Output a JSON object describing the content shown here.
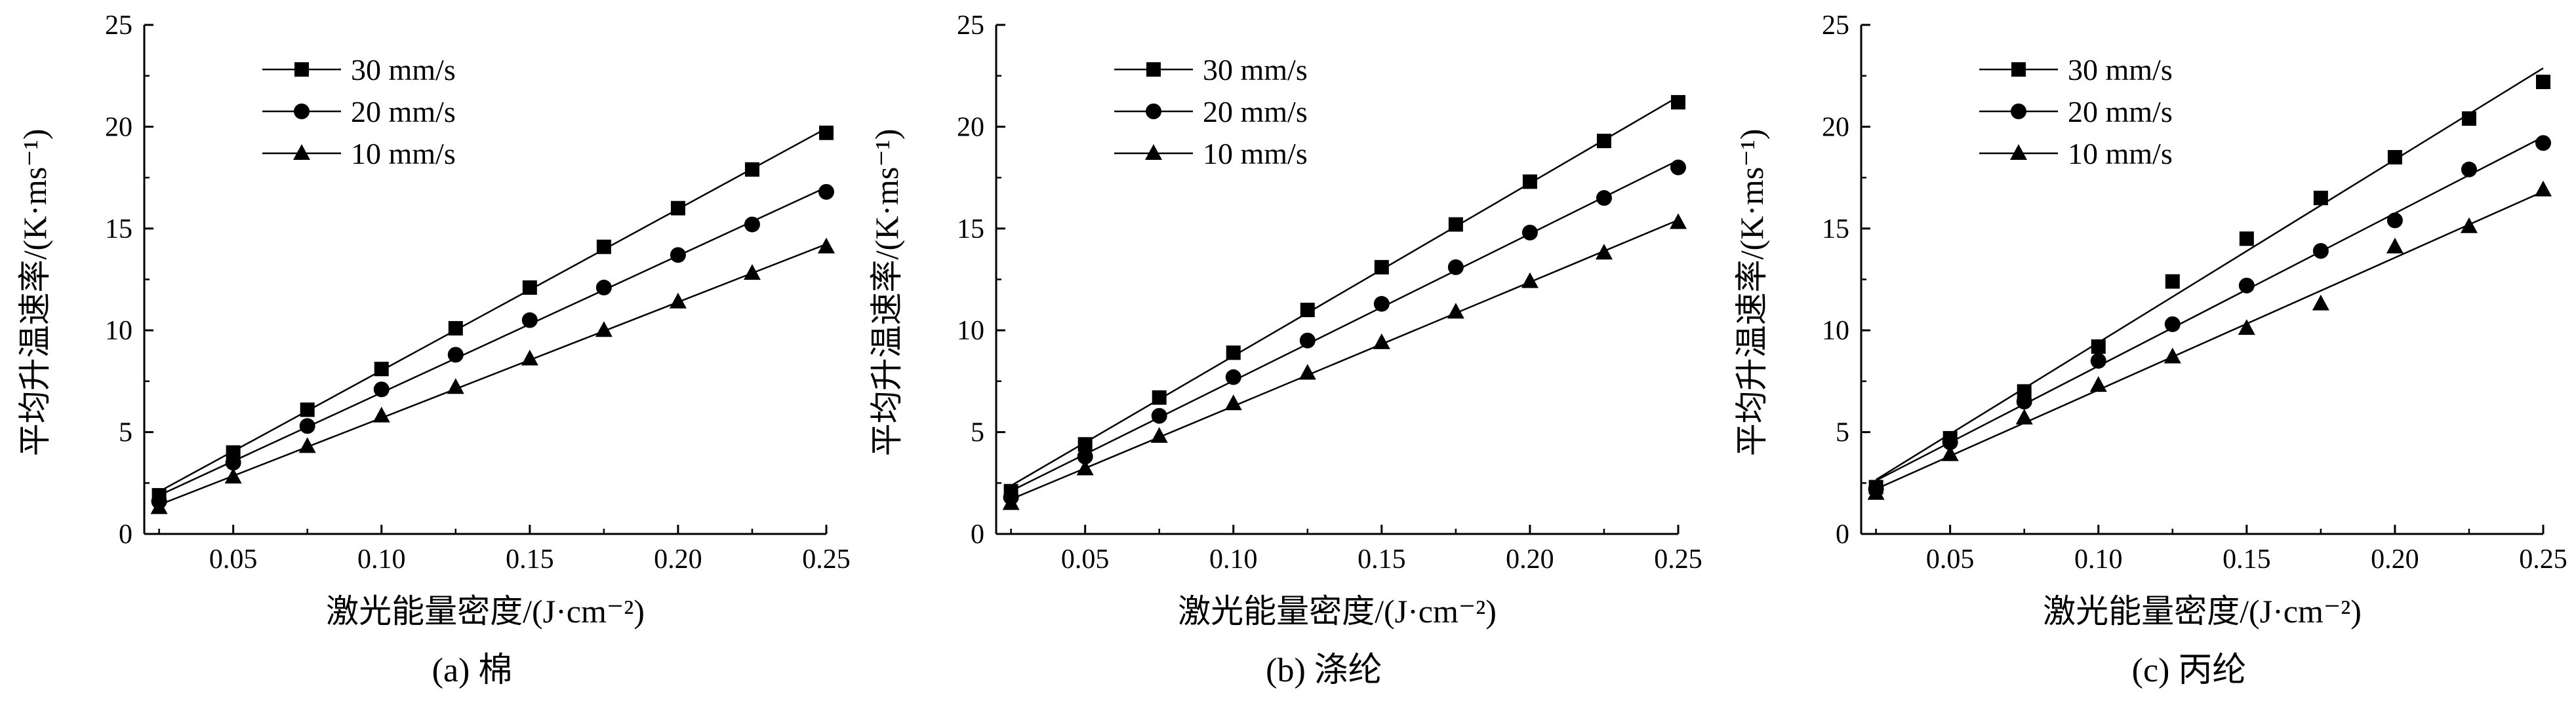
{
  "chart_data": [
    {
      "type": "line",
      "caption": "(a) 棉",
      "xlabel": "激光能量密度/(J·cm⁻²)",
      "ylabel": "平均升温速率/(K·ms⁻¹)",
      "xlim": [
        0.02,
        0.25
      ],
      "ylim": [
        0,
        25
      ],
      "xticks": [
        "0.05",
        "0.10",
        "0.15",
        "0.20",
        "0.25"
      ],
      "yticks": [
        "0",
        "5",
        "10",
        "15",
        "20",
        "25"
      ],
      "legend_position": "top-left",
      "x": [
        0.025,
        0.05,
        0.075,
        0.1,
        0.125,
        0.15,
        0.175,
        0.2,
        0.225,
        0.25
      ],
      "series": [
        {
          "name": "30 mm/s",
          "marker": "square",
          "values": [
            1.9,
            4.0,
            6.1,
            8.1,
            10.1,
            12.1,
            14.1,
            16.0,
            17.9,
            19.7
          ]
        },
        {
          "name": "20 mm/s",
          "marker": "circle",
          "values": [
            1.6,
            3.5,
            5.3,
            7.1,
            8.8,
            10.5,
            12.1,
            13.7,
            15.2,
            16.8
          ]
        },
        {
          "name": "10 mm/s",
          "marker": "triangle",
          "values": [
            1.3,
            2.8,
            4.3,
            5.8,
            7.2,
            8.6,
            10.0,
            11.4,
            12.8,
            14.1
          ]
        }
      ]
    },
    {
      "type": "line",
      "caption": "(b) 涤纶",
      "xlabel": "激光能量密度/(J·cm⁻²)",
      "ylabel": "平均升温速率/(K·ms⁻¹)",
      "xlim": [
        0.02,
        0.25
      ],
      "ylim": [
        0,
        25
      ],
      "xticks": [
        "0.05",
        "0.10",
        "0.15",
        "0.20",
        "0.25"
      ],
      "yticks": [
        "0",
        "5",
        "10",
        "15",
        "20",
        "25"
      ],
      "legend_position": "top-left",
      "x": [
        0.025,
        0.05,
        0.075,
        0.1,
        0.125,
        0.15,
        0.175,
        0.2,
        0.225,
        0.25
      ],
      "series": [
        {
          "name": "30 mm/s",
          "marker": "square",
          "values": [
            2.1,
            4.4,
            6.7,
            8.9,
            11.0,
            13.1,
            15.2,
            17.3,
            19.3,
            21.2
          ]
        },
        {
          "name": "20 mm/s",
          "marker": "circle",
          "values": [
            1.8,
            3.8,
            5.8,
            7.7,
            9.5,
            11.3,
            13.1,
            14.8,
            16.5,
            18.0
          ]
        },
        {
          "name": "10 mm/s",
          "marker": "triangle",
          "values": [
            1.5,
            3.2,
            4.8,
            6.4,
            7.9,
            9.4,
            10.9,
            12.4,
            13.8,
            15.3
          ]
        }
      ]
    },
    {
      "type": "line",
      "caption": "(c) 丙纶",
      "xlabel": "激光能量密度/(J·cm⁻²)",
      "ylabel": "平均升温速率/(K·ms⁻¹)",
      "xlim": [
        0.02,
        0.25
      ],
      "ylim": [
        0,
        25
      ],
      "xticks": [
        "0.05",
        "0.10",
        "0.15",
        "0.20",
        "0.25"
      ],
      "yticks": [
        "0",
        "5",
        "10",
        "15",
        "20",
        "25"
      ],
      "legend_position": "top-left",
      "x": [
        0.025,
        0.05,
        0.075,
        0.1,
        0.125,
        0.15,
        0.175,
        0.2,
        0.225,
        0.25
      ],
      "series": [
        {
          "name": "30 mm/s",
          "marker": "square",
          "values": [
            2.3,
            4.7,
            7.0,
            9.2,
            12.4,
            14.5,
            16.5,
            18.5,
            20.4,
            22.2
          ]
        },
        {
          "name": "20 mm/s",
          "marker": "circle",
          "values": [
            2.2,
            4.5,
            6.5,
            8.5,
            10.3,
            12.2,
            13.9,
            15.4,
            17.9,
            19.2
          ]
        },
        {
          "name": "10 mm/s",
          "marker": "triangle",
          "values": [
            2.0,
            3.9,
            5.7,
            7.3,
            8.7,
            10.1,
            11.3,
            14.1,
            15.1,
            16.9
          ]
        }
      ]
    }
  ]
}
